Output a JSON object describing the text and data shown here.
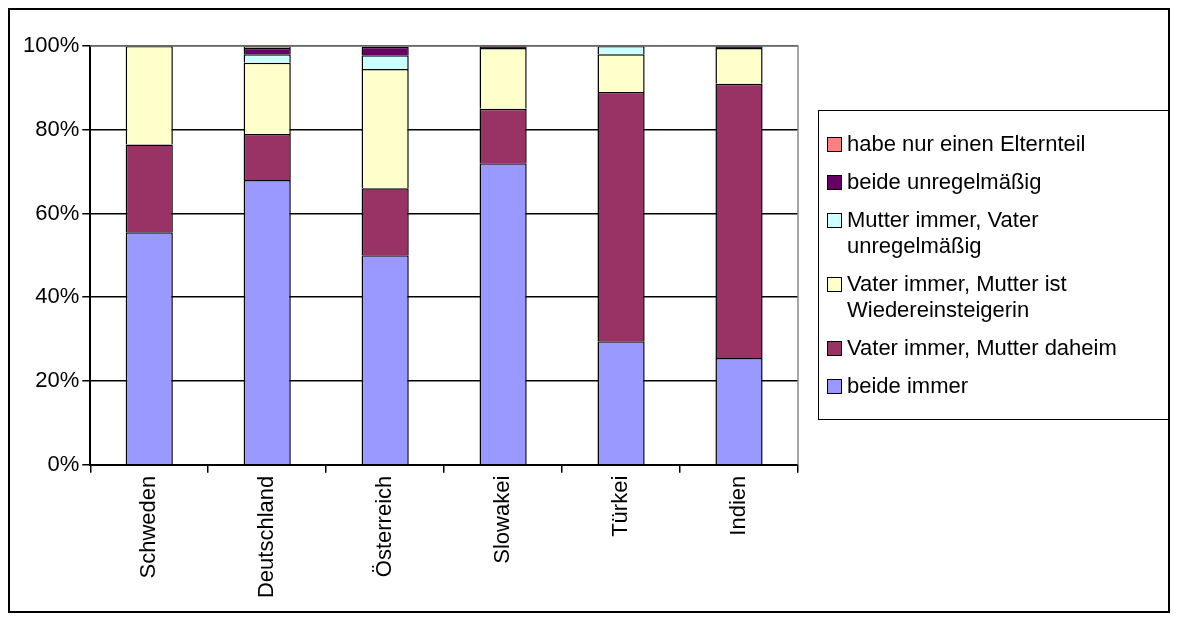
{
  "chart_data": {
    "type": "bar",
    "stacked": true,
    "categories": [
      "Schweden",
      "Deutschland",
      "Österreich",
      "Slowakei",
      "Türkei",
      "Indien"
    ],
    "series": [
      {
        "name": "beide immer",
        "color": "#9999ff",
        "values": [
          55.5,
          68,
          50,
          72,
          29.5,
          25.5
        ]
      },
      {
        "name": "Vater immer, Mutter daheim",
        "color": "#993366",
        "values": [
          21,
          11,
          16,
          13,
          59.5,
          65.5
        ]
      },
      {
        "name": "Vater immer, Mutter ist Wiedereinsteigerin",
        "color": "#ffffcc",
        "values": [
          23.5,
          17,
          28.5,
          14.5,
          9,
          8.5
        ]
      },
      {
        "name": "Mutter immer, Vater unregelmäßig",
        "color": "#ccffff",
        "values": [
          0,
          2,
          3.3,
          0,
          2,
          0
        ]
      },
      {
        "name": "beide unregelmäßig",
        "color": "#660066",
        "values": [
          0,
          1.5,
          2,
          0.5,
          0,
          0.5
        ]
      },
      {
        "name": "habe nur einen Elternteil",
        "color": "#ff8080",
        "values": [
          0,
          0.5,
          null,
          0,
          0,
          0
        ]
      }
    ],
    "ylim": [
      0,
      100
    ],
    "yticks": [
      {
        "value": 0,
        "label": "0%"
      },
      {
        "value": 20,
        "label": "20%"
      },
      {
        "value": 40,
        "label": "40%"
      },
      {
        "value": 60,
        "label": "60%"
      },
      {
        "value": 80,
        "label": "80%"
      },
      {
        "value": 100,
        "label": "100%"
      }
    ],
    "grid": "y",
    "legend": "right"
  }
}
